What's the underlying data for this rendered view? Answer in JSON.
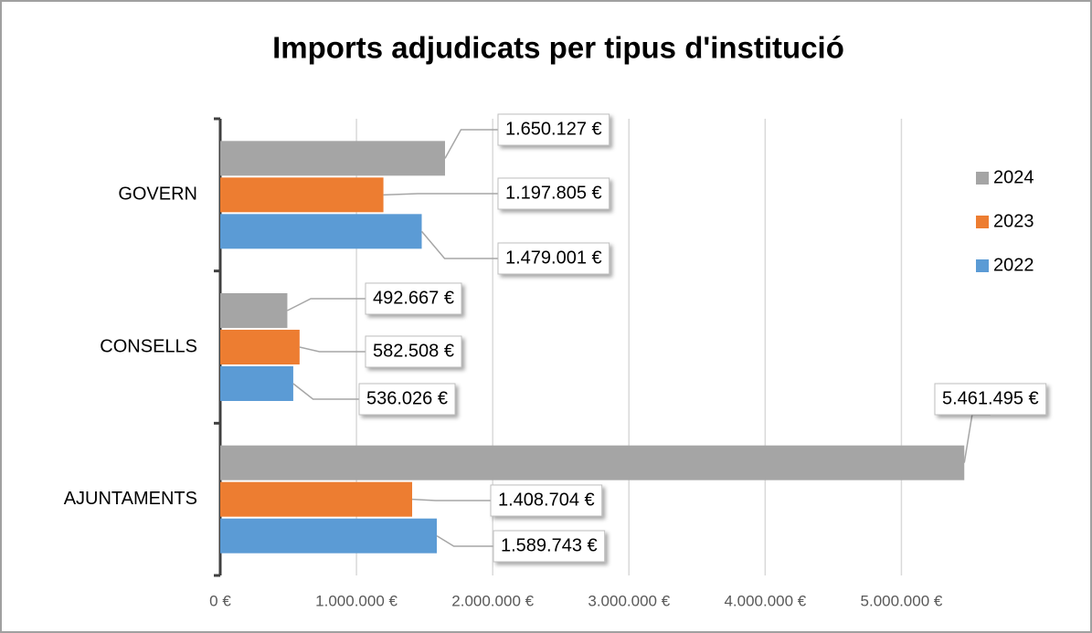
{
  "chart_data": {
    "type": "bar",
    "orientation": "horizontal",
    "title": "Imports adjudicats per tipus d'institució",
    "categories": [
      "GOVERN",
      "CONSELLS",
      "AJUNTAMENTS"
    ],
    "series": [
      {
        "name": "2024",
        "color": "#a5a5a5",
        "values": [
          1650127,
          492667,
          5461495
        ],
        "value_labels": [
          "1.650.127 €",
          "492.667 €",
          "5.461.495 €"
        ]
      },
      {
        "name": "2023",
        "color": "#ed7d31",
        "values": [
          1197805,
          582508,
          1408704
        ],
        "value_labels": [
          "1.197.805 €",
          "582.508 €",
          "1.408.704 €"
        ]
      },
      {
        "name": "2022",
        "color": "#5b9bd5",
        "values": [
          1479001,
          536026,
          1589743
        ],
        "value_labels": [
          "1.479.001 €",
          "536.026 €",
          "1.589.743 €"
        ]
      }
    ],
    "xlim": [
      0,
      5500000
    ],
    "xticks": [
      {
        "value": 0,
        "label": "0 €"
      },
      {
        "value": 1000000,
        "label": "1.000.000 €"
      },
      {
        "value": 2000000,
        "label": "2.000.000 €"
      },
      {
        "value": 3000000,
        "label": "3.000.000 €"
      },
      {
        "value": 4000000,
        "label": "4.000.000 €"
      },
      {
        "value": 5000000,
        "label": "5.000.000 €"
      }
    ],
    "grid": true,
    "legend": "right"
  }
}
